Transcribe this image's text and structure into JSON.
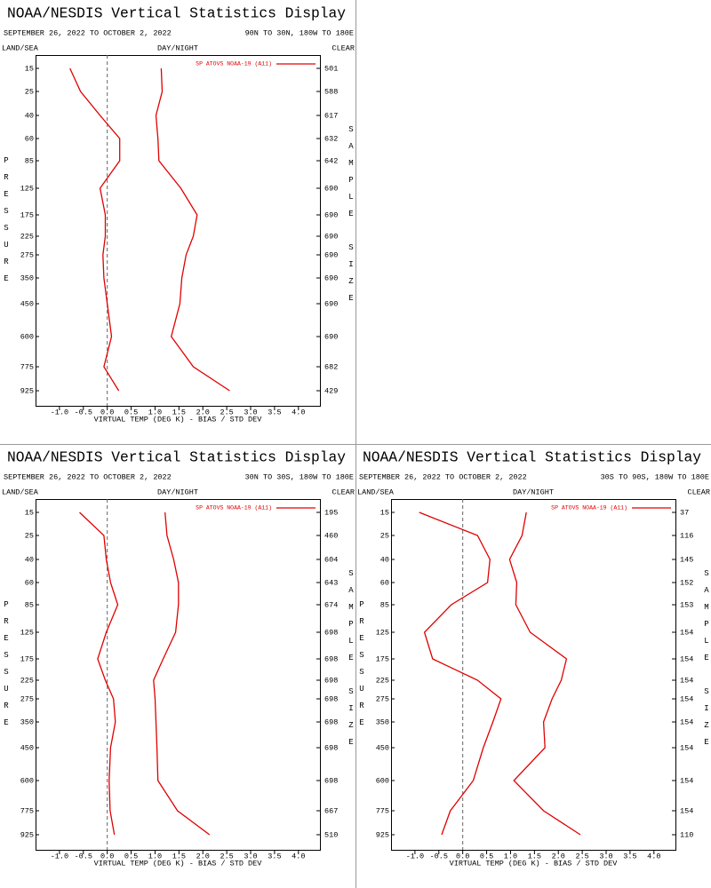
{
  "chart_data": [
    {
      "type": "line",
      "title": "NOAA/NESDIS Vertical Statistics Display",
      "subtitle": "SEPTEMBER 26, 2022 TO OCTOBER 2, 2022",
      "region": "90N TO 30N, 180W TO 180E",
      "land_sea": "LAND/SEA",
      "day_night": "DAY/NIGHT",
      "clear": "CLEAR",
      "y_label": "PRESSURE",
      "y2_label": "SAMPLE SIZE",
      "x_label": "VIRTUAL TEMP (DEG K) - BIAS / STD DEV",
      "categories": [
        "15",
        "25",
        "40",
        "60",
        "85",
        "125",
        "175",
        "225",
        "275",
        "350",
        "450",
        "600",
        "775",
        "925"
      ],
      "sample_size": [
        501,
        588,
        617,
        632,
        642,
        690,
        690,
        690,
        690,
        690,
        690,
        690,
        682,
        429
      ],
      "series": [
        {
          "name": "SP ATOVS NOAA-19 (A11)",
          "color": "#e00000",
          "bias": [
            -0.78,
            -0.56,
            -0.15,
            0.26,
            0.26,
            -0.15,
            -0.04,
            -0.04,
            -0.09,
            -0.07,
            0.0,
            0.09,
            -0.07,
            0.24
          ],
          "std_dev": [
            1.13,
            1.15,
            1.02,
            1.06,
            1.08,
            1.54,
            1.88,
            1.8,
            1.65,
            1.56,
            1.52,
            1.34,
            1.8,
            2.56
          ]
        }
      ],
      "xlim": [
        -1.5,
        4.45
      ],
      "xticks": [
        {
          "value": -1,
          "label": "-1.0"
        },
        -0.5,
        {
          "value": 0,
          "label": "0.0"
        },
        0.5,
        {
          "value": 1,
          "label": "1.0"
        },
        1.5,
        {
          "value": 2,
          "label": "2.0"
        },
        2.5,
        {
          "value": 3,
          "label": "3.0"
        },
        3.5,
        {
          "value": 4,
          "label": "4.0"
        }
      ]
    },
    {
      "type": "line",
      "title": "NOAA/NESDIS Vertical Statistics Display",
      "subtitle": "SEPTEMBER 26, 2022 TO OCTOBER 2, 2022",
      "region": "30N TO 30S, 180W TO 180E",
      "land_sea": "LAND/SEA",
      "day_night": "DAY/NIGHT",
      "clear": "CLEAR",
      "y_label": "PRESSURE",
      "y2_label": "SAMPLE SIZE",
      "x_label": "VIRTUAL TEMP (DEG K) - BIAS / STD DEV",
      "categories": [
        "15",
        "25",
        "40",
        "60",
        "85",
        "125",
        "175",
        "225",
        "275",
        "350",
        "450",
        "600",
        "775",
        "925"
      ],
      "sample_size": [
        195,
        460,
        604,
        643,
        674,
        698,
        698,
        698,
        698,
        698,
        698,
        698,
        667,
        510
      ],
      "series": [
        {
          "name": "SP ATOVS NOAA-19 (A11)",
          "color": "#e00000",
          "bias": [
            -0.58,
            -0.07,
            -0.02,
            0.07,
            0.22,
            -0.02,
            -0.2,
            -0.04,
            0.13,
            0.17,
            0.07,
            0.04,
            0.06,
            0.15
          ],
          "std_dev": [
            1.21,
            1.25,
            1.39,
            1.49,
            1.49,
            1.43,
            1.17,
            0.97,
            1.0,
            1.02,
            1.04,
            1.06,
            1.47,
            2.14
          ]
        }
      ],
      "xlim": [
        -1.5,
        4.45
      ],
      "xticks": [
        {
          "value": -1,
          "label": "-1.0"
        },
        -0.5,
        {
          "value": 0,
          "label": "0.0"
        },
        0.5,
        {
          "value": 1,
          "label": "1.0"
        },
        1.5,
        {
          "value": 2,
          "label": "2.0"
        },
        2.5,
        {
          "value": 3,
          "label": "3.0"
        },
        3.5,
        {
          "value": 4,
          "label": "4.0"
        }
      ]
    },
    {
      "type": "line",
      "title": "NOAA/NESDIS Vertical Statistics Display",
      "subtitle": "SEPTEMBER 26, 2022 TO OCTOBER 2, 2022",
      "region": "30S TO 90S, 180W TO 180E",
      "land_sea": "LAND/SEA",
      "day_night": "DAY/NIGHT",
      "clear": "CLEAR",
      "y_label": "PRESSURE",
      "y2_label": "SAMPLE SIZE",
      "x_label": "VIRTUAL TEMP (DEG K) - BIAS / STD DEV",
      "categories": [
        "15",
        "25",
        "40",
        "60",
        "85",
        "125",
        "175",
        "225",
        "275",
        "350",
        "450",
        "600",
        "775",
        "925"
      ],
      "sample_size": [
        37,
        116,
        145,
        152,
        153,
        154,
        154,
        154,
        154,
        154,
        154,
        154,
        154,
        110
      ],
      "series": [
        {
          "name": "SP ATOVS NOAA-19 (A11)",
          "color": "#e00000",
          "bias": [
            -0.91,
            0.31,
            0.57,
            0.52,
            -0.24,
            -0.8,
            -0.63,
            0.31,
            0.8,
            0.63,
            0.43,
            0.22,
            -0.26,
            -0.44
          ],
          "std_dev": [
            1.33,
            1.24,
            0.98,
            1.13,
            1.11,
            1.41,
            2.17,
            2.06,
            1.87,
            1.69,
            1.72,
            1.07,
            1.69,
            2.46
          ]
        }
      ],
      "xlim": [
        -1.5,
        4.45
      ],
      "xticks": [
        {
          "value": -1,
          "label": "-1.0"
        },
        -0.5,
        {
          "value": 0,
          "label": "0.0"
        },
        0.5,
        {
          "value": 1,
          "label": "1.0"
        },
        1.5,
        {
          "value": 2,
          "label": "2.0"
        },
        2.5,
        {
          "value": 3,
          "label": "3.0"
        },
        3.5,
        {
          "value": 4,
          "label": "4.0"
        }
      ]
    }
  ]
}
